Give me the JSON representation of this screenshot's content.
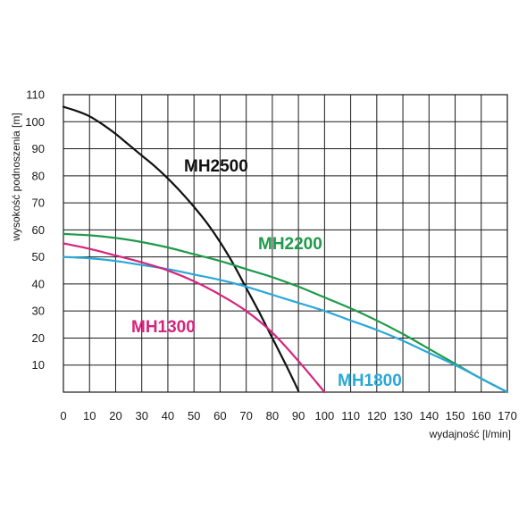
{
  "chart_data": {
    "type": "line",
    "xlabel": "wydajność [l/min]",
    "ylabel": "wysokość podnoszenia [m]",
    "xlim": [
      0,
      170
    ],
    "ylim": [
      0,
      110
    ],
    "x_ticks": [
      0,
      10,
      20,
      30,
      40,
      50,
      60,
      70,
      80,
      90,
      100,
      110,
      120,
      130,
      140,
      150,
      160,
      170
    ],
    "y_ticks": [
      10,
      20,
      30,
      40,
      50,
      60,
      70,
      80,
      90,
      100,
      110
    ],
    "grid": true,
    "series": [
      {
        "name": "MH2500",
        "color": "#111111",
        "points": [
          [
            0,
            105.5
          ],
          [
            5,
            104
          ],
          [
            10,
            102
          ],
          [
            15,
            99
          ],
          [
            20,
            95.5
          ],
          [
            25,
            91.5
          ],
          [
            30,
            87.5
          ],
          [
            35,
            83.5
          ],
          [
            40,
            79
          ],
          [
            45,
            74
          ],
          [
            50,
            68.5
          ],
          [
            55,
            62.5
          ],
          [
            60,
            55.5
          ],
          [
            65,
            47.5
          ],
          [
            70,
            38.5
          ],
          [
            75,
            29.5
          ],
          [
            80,
            20
          ],
          [
            85,
            10.5
          ],
          [
            90,
            0.5
          ]
        ]
      },
      {
        "name": "MH2200",
        "color": "#1e9a4a",
        "points": [
          [
            0,
            58.5
          ],
          [
            10,
            58
          ],
          [
            20,
            57
          ],
          [
            30,
            55.5
          ],
          [
            40,
            53.5
          ],
          [
            50,
            51
          ],
          [
            60,
            48.5
          ],
          [
            70,
            45.5
          ],
          [
            80,
            42.5
          ],
          [
            90,
            39
          ],
          [
            100,
            35
          ],
          [
            110,
            31
          ],
          [
            120,
            26.5
          ],
          [
            130,
            21.5
          ],
          [
            140,
            16
          ],
          [
            150,
            10.5
          ],
          [
            160,
            5
          ],
          [
            170,
            0
          ]
        ]
      },
      {
        "name": "MH1800",
        "color": "#2aa8d8",
        "points": [
          [
            0,
            50
          ],
          [
            10,
            49.5
          ],
          [
            20,
            48.5
          ],
          [
            30,
            47
          ],
          [
            40,
            45.5
          ],
          [
            50,
            43.5
          ],
          [
            60,
            41.5
          ],
          [
            70,
            39
          ],
          [
            80,
            36
          ],
          [
            90,
            33
          ],
          [
            100,
            30
          ],
          [
            110,
            26.5
          ],
          [
            120,
            23
          ],
          [
            130,
            19
          ],
          [
            140,
            14.5
          ],
          [
            150,
            10
          ],
          [
            160,
            5
          ],
          [
            170,
            0
          ]
        ]
      },
      {
        "name": "MH1300",
        "color": "#d6247c",
        "points": [
          [
            0,
            55
          ],
          [
            10,
            53
          ],
          [
            20,
            50.5
          ],
          [
            30,
            48
          ],
          [
            40,
            45
          ],
          [
            50,
            41
          ],
          [
            60,
            36
          ],
          [
            70,
            30
          ],
          [
            80,
            22
          ],
          [
            90,
            11.5
          ],
          [
            100,
            0
          ]
        ]
      }
    ]
  }
}
